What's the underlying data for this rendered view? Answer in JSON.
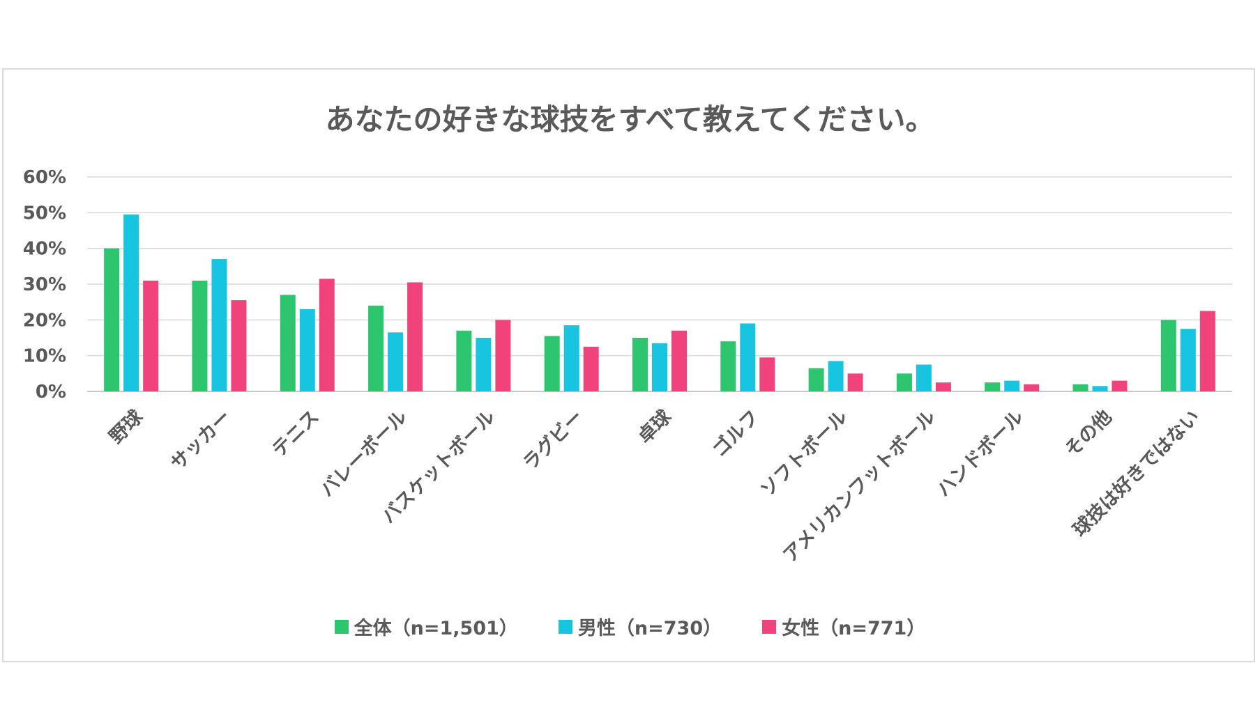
{
  "chart_data": {
    "type": "bar",
    "title": "あなたの好きな球技をすべて教えてください。",
    "categories": [
      "野球",
      "サッカー",
      "テニス",
      "バレーボール",
      "バスケットボール",
      "ラグビー",
      "卓球",
      "ゴルフ",
      "ソフトボール",
      "アメリカンフットボール",
      "ハンドボール",
      "その他",
      "球技は好きではない"
    ],
    "series": [
      {
        "name": "全体（n=1,501）",
        "color": "#2ec56f",
        "values": [
          40,
          31,
          27,
          24,
          17,
          15.5,
          15,
          14,
          6.5,
          5,
          2.5,
          2,
          20
        ]
      },
      {
        "name": "男性（n=730）",
        "color": "#17c5e0",
        "values": [
          49.5,
          37,
          23,
          16.5,
          15,
          18.5,
          13.5,
          19,
          8.5,
          7.5,
          3,
          1.5,
          17.5
        ]
      },
      {
        "name": "女性（n=771）",
        "color": "#f0437c",
        "values": [
          31,
          25.5,
          31.5,
          30.5,
          20,
          12.5,
          17,
          9.5,
          5,
          2.5,
          2,
          3,
          22.5
        ]
      }
    ],
    "ylim": [
      0,
      60
    ],
    "yticks": [
      "0%",
      "10%",
      "20%",
      "30%",
      "40%",
      "50%",
      "60%"
    ],
    "grid": true,
    "legend_position": "bottom"
  }
}
